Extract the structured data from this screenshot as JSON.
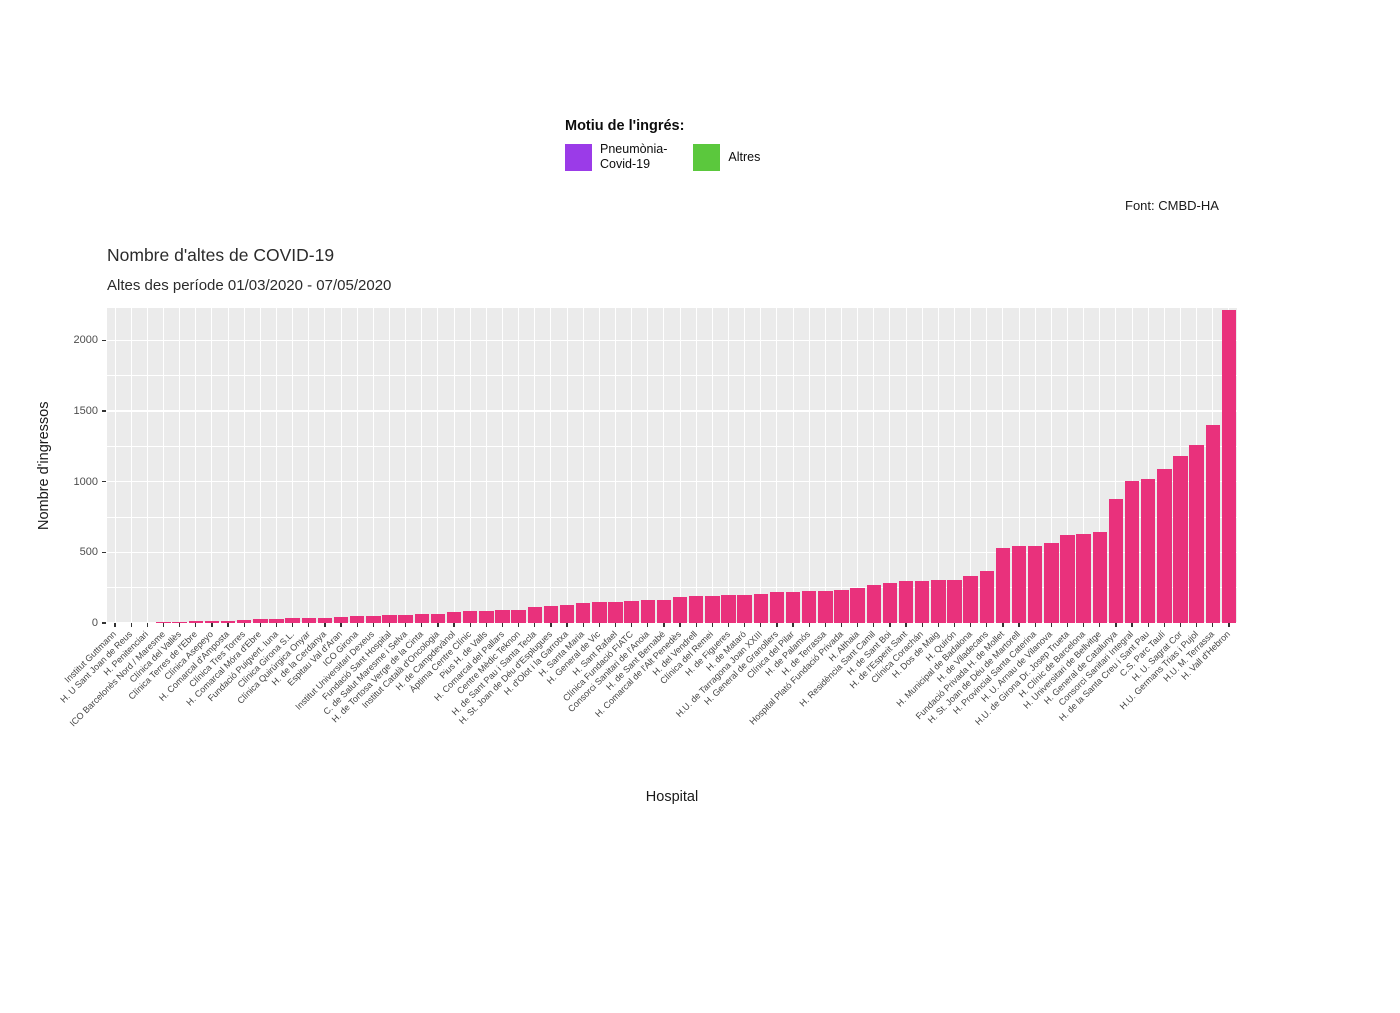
{
  "source_note": "Font: CMBD-HA",
  "legend": {
    "title": "Motiu de l'ingrés:",
    "items": [
      {
        "label": "Pneumònia-\nCovid-19",
        "color": "#9B3BE8"
      },
      {
        "label": "Altres",
        "color": "#5BC83D"
      }
    ]
  },
  "chart_data": {
    "type": "bar",
    "title": "Nombre d'altes de COVID-19",
    "subtitle": "Altes des període 01/03/2020 - 07/05/2020",
    "xlabel": "Hospital",
    "ylabel": "Nombre d'ingressos",
    "ylim": [
      0,
      2230
    ],
    "yticks": [
      0,
      500,
      1000,
      1500,
      2000
    ],
    "yticks_minor": [
      250,
      750,
      1250,
      1750,
      2250
    ],
    "grid": "on (white major+minor horizontal, vertical line at each category, gray panel)",
    "legend_position": "top",
    "legend_title": "Motiu de l'ingrés:",
    "legend_entries": [
      "Pneumònia-Covid-19",
      "Altres"
    ],
    "bar_color": "#E9317C",
    "panel_background": "#EBEBEB",
    "categories": [
      "Institut Guttmann",
      "H. U Sant Joan de Reus",
      "H. Penitenciari",
      "ICO Barcelonès Nord / Maresme",
      "Clínica del Vallès",
      "Clínica Terres de l'Ebre",
      "Clínica Asepeyo",
      "H. Comarcal d'Amposta",
      "Clínica Tres Torres",
      "H. Comarcal Móra d'Ebre",
      "Fundació Puigvert. Iuna",
      "Clínica Girona S.L.",
      "Clínica Quirúrgica Onyar",
      "H. de la Cerdanya",
      "Espitau Val d'Aran",
      "ICO Girona",
      "Institut Universitari Dexeus",
      "Fundació Sant Hospital",
      "C. de Salut Maresme i Selva",
      "H. de Tortosa Verge de la Cinta",
      "Institut Català d'Oncologia",
      "H. de Campdevànol",
      "Àptima Centre Clínic",
      "Pius H. de Valls",
      "H. Comarcal del Pallars",
      "Centre Mèdic Teknon",
      "H. de Sant Pau i Santa Tecla",
      "H. St. Joan de Déu d'Esplugues",
      "H. d'Olot i la Garrotxa",
      "H. Santa Maria",
      "H. General de Vic",
      "H. Sant Rafael",
      "Clínica Fundació FIATC",
      "Consorci Sanitari de l'Anoia",
      "H. de Sant Bernabé",
      "H. Comarcal de l'Alt Penedès",
      "H. del Vendrell",
      "Clínica del Remei",
      "H. de Figueres",
      "H. de Mataró",
      "H.U. de Tarragona Joan XXIII",
      "H. General de Granollers",
      "Clínica del Pilar",
      "H. de Palamós",
      "H. de Terrassa",
      "Hospital Plató Fundació Privada",
      "H. Althaia",
      "H. Residència Sant Camil",
      "H. de Sant Boi",
      "H. de l'Esperit Sant",
      "Clínica Corachán",
      "H. Dos de Maig",
      "H. Quirón",
      "H. Municipal de Badalona",
      "H. de Viladecans",
      "Fundació Privada H. de Mollet",
      "H. St. Joan de Déu de Martorell",
      "H. Provincial Santa Caterina",
      "H. U. Arnau de Vilanova",
      "H.U. de Girona Dr. Josep Trueta",
      "H. Clínic de Barcelona",
      "H. Universitari de Bellvitge",
      "H. General de Catalunya",
      "Consorci Sanitari Integral",
      "H. de la Santa Creu i Sant Pau",
      "C.S. Parc Taulí",
      "H. U. Sagrat Cor",
      "H.U. Germans Trias i Pujol",
      "H.U. M. Terrassa",
      "H. Vall d'Hebron"
    ],
    "values": [
      1,
      1,
      2,
      4,
      8,
      11,
      14,
      17,
      21,
      25,
      29,
      32,
      35,
      39,
      43,
      47,
      51,
      55,
      58,
      63,
      67,
      76,
      83,
      86,
      89,
      95,
      110,
      119,
      124,
      143,
      147,
      150,
      153,
      160,
      165,
      183,
      188,
      192,
      195,
      198,
      205,
      220,
      223,
      226,
      230,
      235,
      251,
      267,
      284,
      297,
      299,
      301,
      305,
      330,
      365,
      528,
      542,
      546,
      566,
      620,
      630,
      642,
      880,
      1005,
      1018,
      1090,
      1180,
      1262,
      1400,
      2215
    ]
  }
}
